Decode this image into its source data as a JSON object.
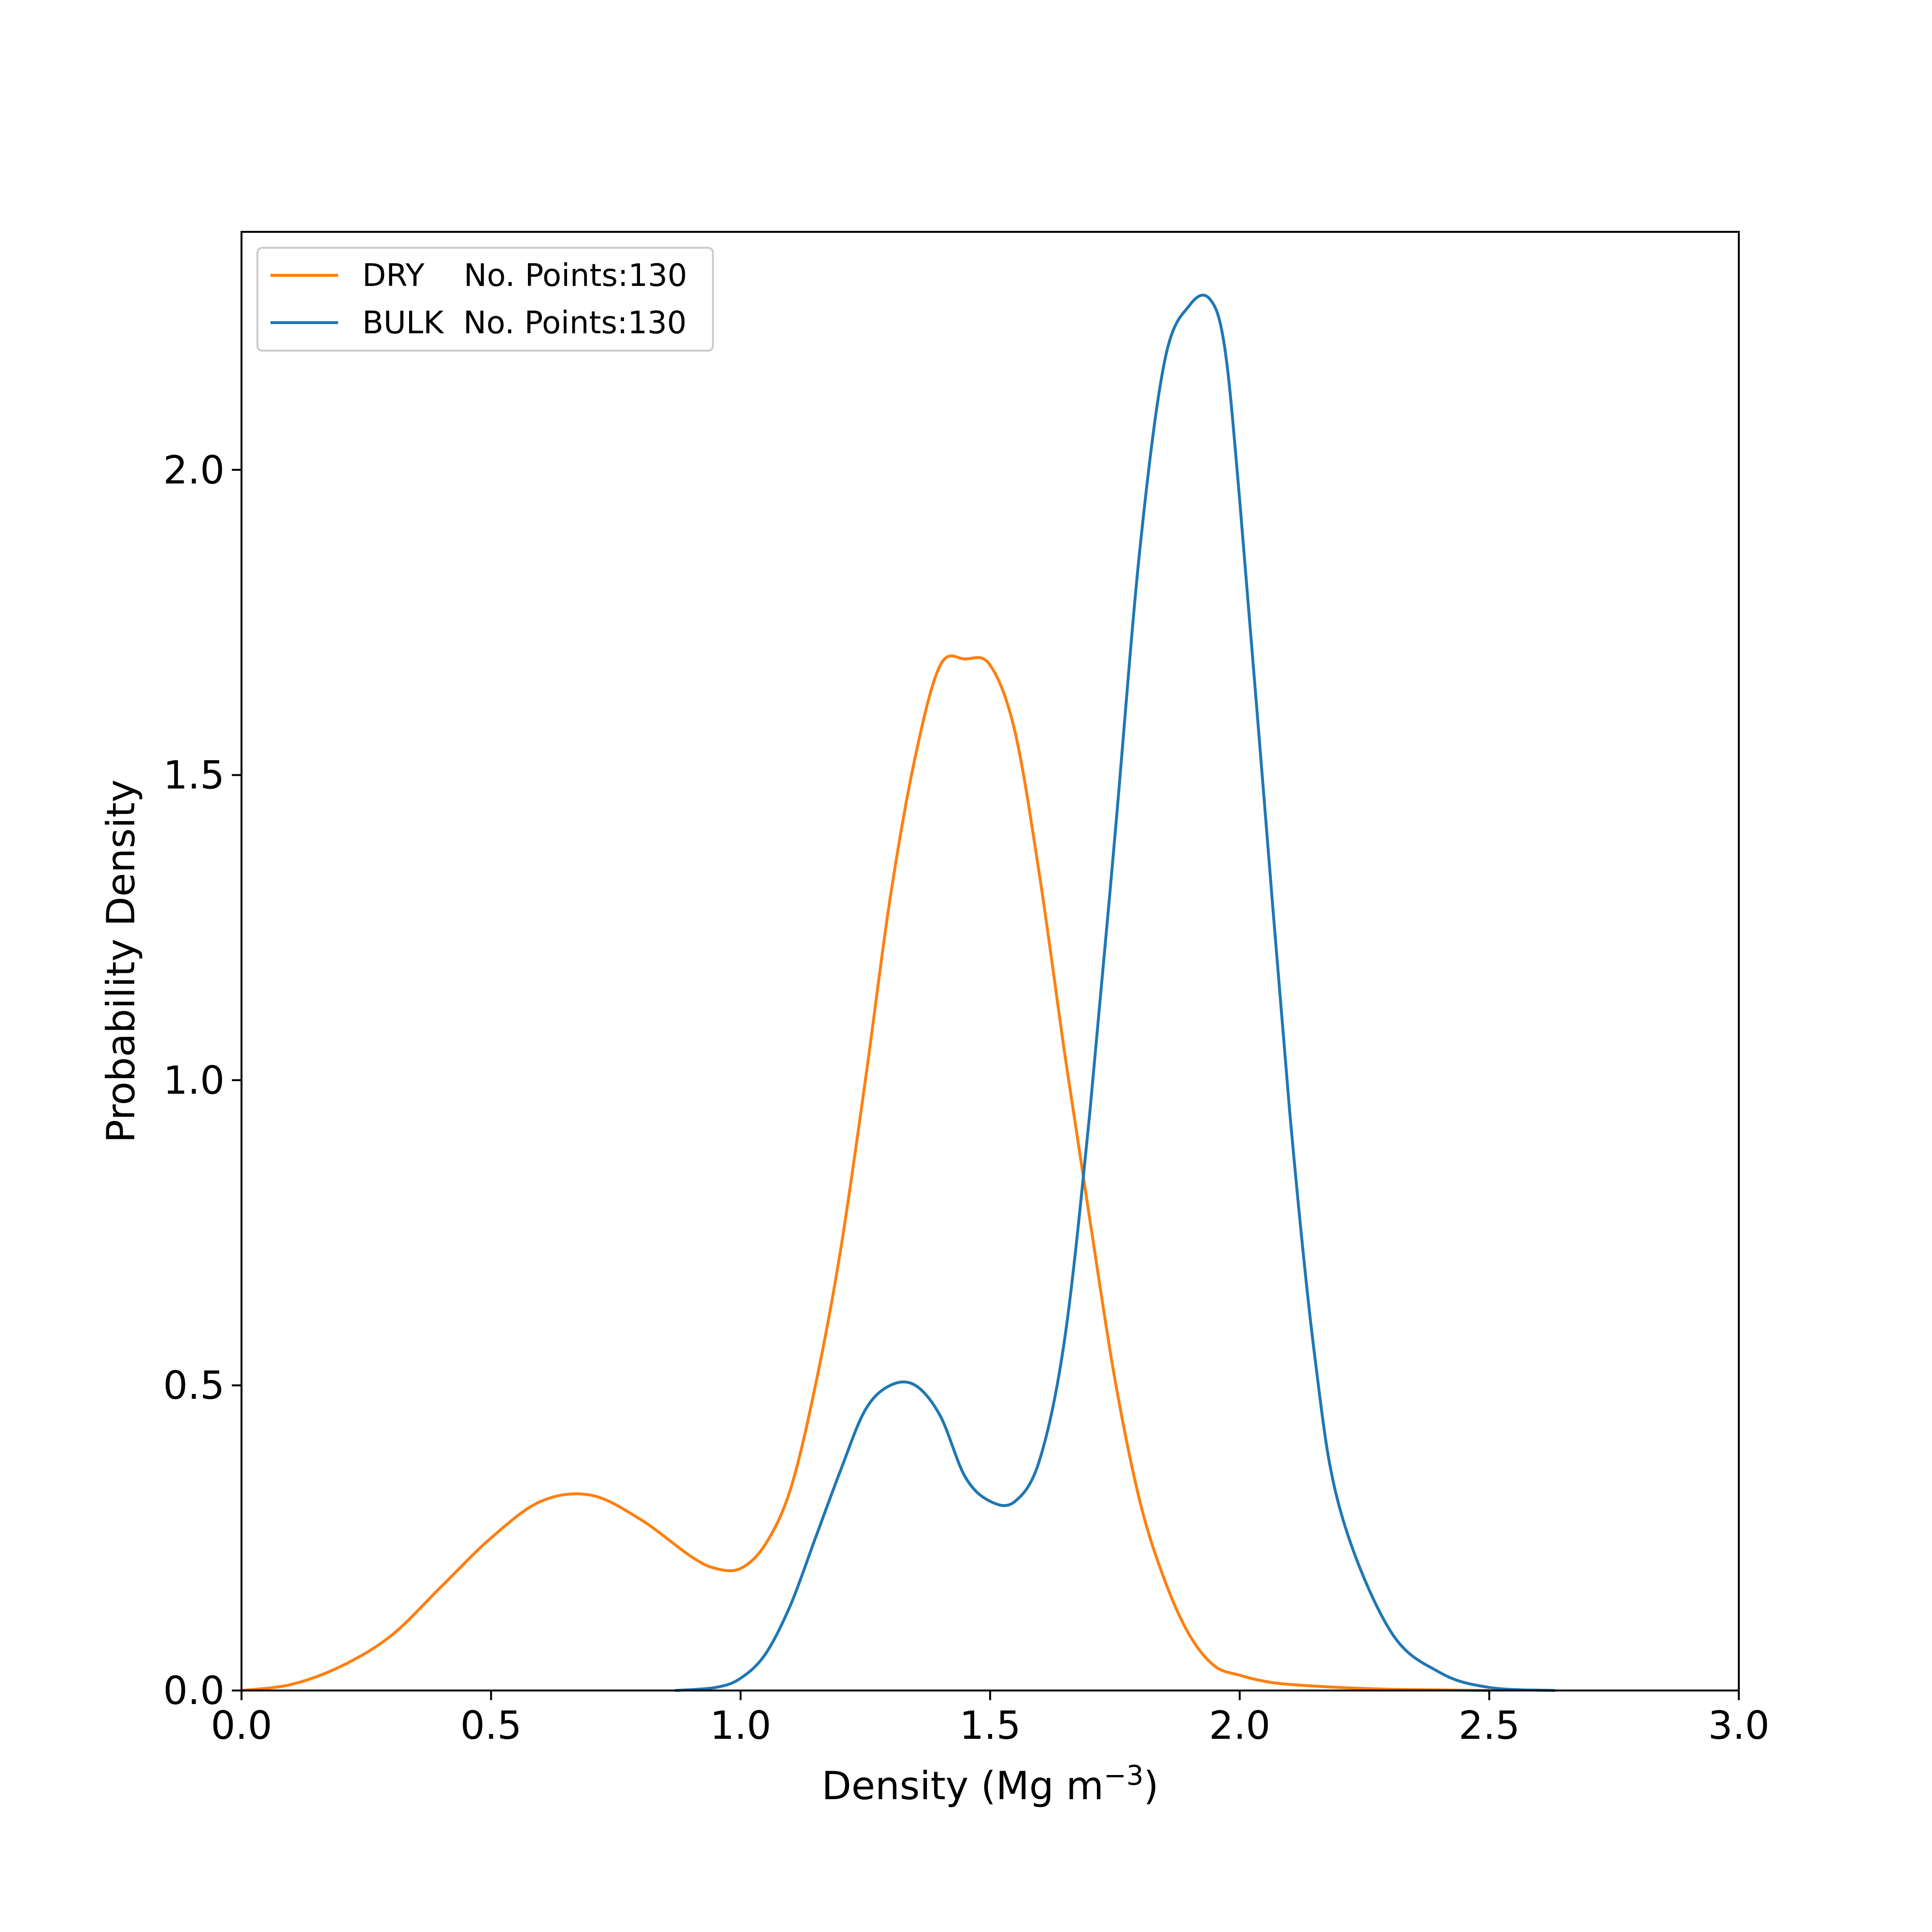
{
  "chart_data": {
    "type": "line",
    "xlabel": "Density (Mg m",
    "xlabel_sup": "−3",
    "xlabel_close": ")",
    "ylabel": "Probability Density",
    "xlim": [
      0.0,
      3.0
    ],
    "ylim": [
      0.0,
      2.39
    ],
    "xticks": [
      "0.0",
      "0.5",
      "1.0",
      "1.5",
      "2.0",
      "2.5",
      "3.0"
    ],
    "yticks": [
      "0.0",
      "0.5",
      "1.0",
      "1.5",
      "2.0"
    ],
    "grid": false,
    "legend_position": "upper-left",
    "series": [
      {
        "name": "DRY    No. Points:130",
        "color": "#ff7f0e",
        "x": [
          0.0,
          0.1,
          0.2,
          0.3,
          0.4,
          0.5,
          0.6,
          0.7,
          0.8,
          0.9,
          0.95,
          1.0,
          1.05,
          1.1,
          1.15,
          1.2,
          1.25,
          1.3,
          1.35,
          1.4,
          1.45,
          1.5,
          1.55,
          1.6,
          1.65,
          1.7,
          1.75,
          1.8,
          1.85,
          1.9,
          1.95,
          2.0,
          2.05,
          2.1,
          2.2,
          2.3,
          2.4,
          2.5
        ],
        "y": [
          0.0,
          0.01,
          0.04,
          0.09,
          0.17,
          0.25,
          0.31,
          0.32,
          0.28,
          0.22,
          0.2,
          0.2,
          0.24,
          0.33,
          0.5,
          0.72,
          1.0,
          1.3,
          1.53,
          1.68,
          1.69,
          1.68,
          1.57,
          1.33,
          1.04,
          0.77,
          0.51,
          0.31,
          0.18,
          0.09,
          0.04,
          0.025,
          0.015,
          0.01,
          0.005,
          0.002,
          0.001,
          0.0
        ]
      },
      {
        "name": "BULK  No. Points:130",
        "color": "#1f77b4",
        "x": [
          0.87,
          0.95,
          1.0,
          1.05,
          1.1,
          1.15,
          1.2,
          1.25,
          1.3,
          1.35,
          1.4,
          1.45,
          1.5,
          1.55,
          1.6,
          1.65,
          1.7,
          1.75,
          1.8,
          1.85,
          1.9,
          1.94,
          1.97,
          2.0,
          2.05,
          2.1,
          2.15,
          2.2,
          2.3,
          2.4,
          2.5,
          2.63
        ],
        "y": [
          0.0,
          0.005,
          0.02,
          0.06,
          0.14,
          0.25,
          0.36,
          0.46,
          0.5,
          0.5,
          0.45,
          0.35,
          0.31,
          0.31,
          0.38,
          0.58,
          0.95,
          1.4,
          1.87,
          2.18,
          2.27,
          2.28,
          2.2,
          1.95,
          1.45,
          0.95,
          0.55,
          0.3,
          0.1,
          0.03,
          0.005,
          0.0
        ]
      }
    ]
  }
}
